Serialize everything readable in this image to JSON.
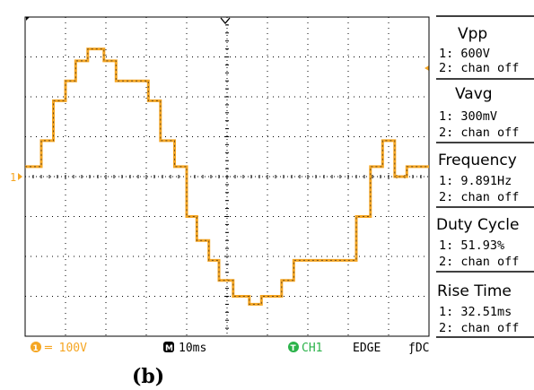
{
  "colors": {
    "trace": "#f5a623",
    "trace_dark": "#6b4a1c",
    "grid": "#000000",
    "ch1_marker": "#f5a623",
    "trigger_marker": "#2bb34a"
  },
  "measurements": [
    {
      "title": "Vpp",
      "ch1": "1: 600V",
      "ch2": "2: chan off"
    },
    {
      "title": "Vavg",
      "ch1": "1: 300mV",
      "ch2": "2: chan off"
    },
    {
      "title": "Frequency",
      "ch1": "1: 9.891Hz",
      "ch2": "2: chan off"
    },
    {
      "title": "Duty Cycle",
      "ch1": "1: 51.93%",
      "ch2": "2: chan off"
    },
    {
      "title": "Rise Time",
      "ch1": "1: 32.51ms",
      "ch2": "2: chan off"
    }
  ],
  "status_bar": {
    "ch1_scale": "═ 100V",
    "timebase": "10ms",
    "trigger_source": "CH1",
    "trigger_type": "EDGE",
    "coupling": "ƒDC",
    "ch1_badge": "1",
    "timebase_badge": "M",
    "trigger_badge": "T"
  },
  "markers": {
    "ch1_ground": "1"
  },
  "caption": "(b)",
  "chart_data": {
    "type": "line",
    "title": "",
    "xlabel": "",
    "ylabel": "",
    "xlim": [
      0,
      10
    ],
    "ylim": [
      -4,
      4
    ],
    "x_unit": "div",
    "y_unit": "div",
    "grid": true,
    "series": [
      {
        "x": [
          0,
          0.4,
          0.4,
          0.7,
          0.7,
          1.0,
          1.0,
          1.25,
          1.25,
          1.55,
          1.55,
          1.95,
          1.95,
          2.25,
          2.25,
          3.05,
          3.05,
          3.35,
          3.35,
          3.7,
          3.7,
          4.0,
          4.0,
          4.25,
          4.25,
          4.55,
          4.55,
          4.8,
          4.8,
          5.15,
          5.15,
          5.55,
          5.55,
          5.85,
          5.85,
          6.35,
          6.35,
          6.65,
          6.65,
          8.2,
          8.2,
          8.55,
          8.55,
          8.85,
          8.85,
          9.15,
          9.15,
          9.45,
          9.45,
          9.75,
          9.75,
          10.0
        ],
        "y": [
          0.25,
          0.25,
          0.9,
          0.9,
          1.9,
          1.9,
          2.4,
          2.4,
          2.9,
          2.9,
          3.2,
          3.2,
          2.9,
          2.9,
          2.4,
          2.4,
          1.9,
          1.9,
          0.9,
          0.9,
          0.25,
          0.25,
          -1.0,
          -1.0,
          -1.6,
          -1.6,
          -2.1,
          -2.1,
          -2.6,
          -2.6,
          -3.0,
          -3.0,
          -3.2,
          -3.2,
          -3.0,
          -3.0,
          -2.6,
          -2.6,
          -2.1,
          -2.1,
          -1.0,
          -1.0,
          0.25,
          0.25,
          0.9,
          0.9,
          0.0,
          0.0,
          0.25,
          0.25,
          0.25,
          0.25
        ]
      }
    ]
  }
}
